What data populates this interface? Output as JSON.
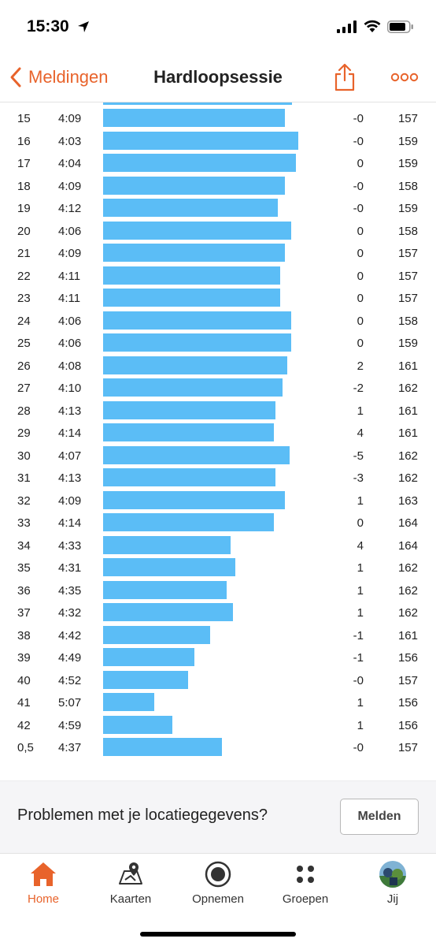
{
  "status": {
    "time": "15:30"
  },
  "nav": {
    "back_label": "Meldingen",
    "title": "Hardloopsessie"
  },
  "colors": {
    "accent": "#e8632b",
    "bar": "#5bbdf6"
  },
  "pace_scale": {
    "bar_at_pace_s": {
      "233": 1.0
    }
  },
  "splits": [
    {
      "km": "15",
      "pace": "4:09",
      "pace_s": 249,
      "elev": "-0",
      "hr": "157"
    },
    {
      "km": "16",
      "pace": "4:03",
      "pace_s": 243,
      "elev": "-0",
      "hr": "159"
    },
    {
      "km": "17",
      "pace": "4:04",
      "pace_s": 244,
      "elev": "0",
      "hr": "159"
    },
    {
      "km": "18",
      "pace": "4:09",
      "pace_s": 249,
      "elev": "-0",
      "hr": "158"
    },
    {
      "km": "19",
      "pace": "4:12",
      "pace_s": 252,
      "elev": "-0",
      "hr": "159"
    },
    {
      "km": "20",
      "pace": "4:06",
      "pace_s": 246,
      "elev": "0",
      "hr": "158"
    },
    {
      "km": "21",
      "pace": "4:09",
      "pace_s": 249,
      "elev": "0",
      "hr": "157"
    },
    {
      "km": "22",
      "pace": "4:11",
      "pace_s": 251,
      "elev": "0",
      "hr": "157"
    },
    {
      "km": "23",
      "pace": "4:11",
      "pace_s": 251,
      "elev": "0",
      "hr": "157"
    },
    {
      "km": "24",
      "pace": "4:06",
      "pace_s": 246,
      "elev": "0",
      "hr": "158"
    },
    {
      "km": "25",
      "pace": "4:06",
      "pace_s": 246,
      "elev": "0",
      "hr": "159"
    },
    {
      "km": "26",
      "pace": "4:08",
      "pace_s": 248,
      "elev": "2",
      "hr": "161"
    },
    {
      "km": "27",
      "pace": "4:10",
      "pace_s": 250,
      "elev": "-2",
      "hr": "162"
    },
    {
      "km": "28",
      "pace": "4:13",
      "pace_s": 253,
      "elev": "1",
      "hr": "161"
    },
    {
      "km": "29",
      "pace": "4:14",
      "pace_s": 254,
      "elev": "4",
      "hr": "161"
    },
    {
      "km": "30",
      "pace": "4:07",
      "pace_s": 247,
      "elev": "-5",
      "hr": "162"
    },
    {
      "km": "31",
      "pace": "4:13",
      "pace_s": 253,
      "elev": "-3",
      "hr": "162"
    },
    {
      "km": "32",
      "pace": "4:09",
      "pace_s": 249,
      "elev": "1",
      "hr": "163"
    },
    {
      "km": "33",
      "pace": "4:14",
      "pace_s": 254,
      "elev": "0",
      "hr": "164"
    },
    {
      "km": "34",
      "pace": "4:33",
      "pace_s": 273,
      "elev": "4",
      "hr": "164"
    },
    {
      "km": "35",
      "pace": "4:31",
      "pace_s": 271,
      "elev": "1",
      "hr": "162"
    },
    {
      "km": "36",
      "pace": "4:35",
      "pace_s": 275,
      "elev": "1",
      "hr": "162"
    },
    {
      "km": "37",
      "pace": "4:32",
      "pace_s": 272,
      "elev": "1",
      "hr": "162"
    },
    {
      "km": "38",
      "pace": "4:42",
      "pace_s": 282,
      "elev": "-1",
      "hr": "161"
    },
    {
      "km": "39",
      "pace": "4:49",
      "pace_s": 289,
      "elev": "-1",
      "hr": "156"
    },
    {
      "km": "40",
      "pace": "4:52",
      "pace_s": 292,
      "elev": "-0",
      "hr": "157"
    },
    {
      "km": "41",
      "pace": "5:07",
      "pace_s": 307,
      "elev": "1",
      "hr": "156"
    },
    {
      "km": "42",
      "pace": "4:59",
      "pace_s": 299,
      "elev": "1",
      "hr": "156"
    },
    {
      "km": "0,5",
      "pace": "4:37",
      "pace_s": 277,
      "elev": "-0",
      "hr": "157"
    }
  ],
  "report": {
    "text": "Problemen met je locatiegegevens?",
    "button": "Melden"
  },
  "tabs": [
    {
      "label": "Home",
      "icon": "home-icon",
      "active": true
    },
    {
      "label": "Kaarten",
      "icon": "map-icon",
      "active": false
    },
    {
      "label": "Opnemen",
      "icon": "record-icon",
      "active": false
    },
    {
      "label": "Groepen",
      "icon": "groups-icon",
      "active": false
    },
    {
      "label": "Jij",
      "icon": "avatar-icon",
      "active": false
    }
  ]
}
